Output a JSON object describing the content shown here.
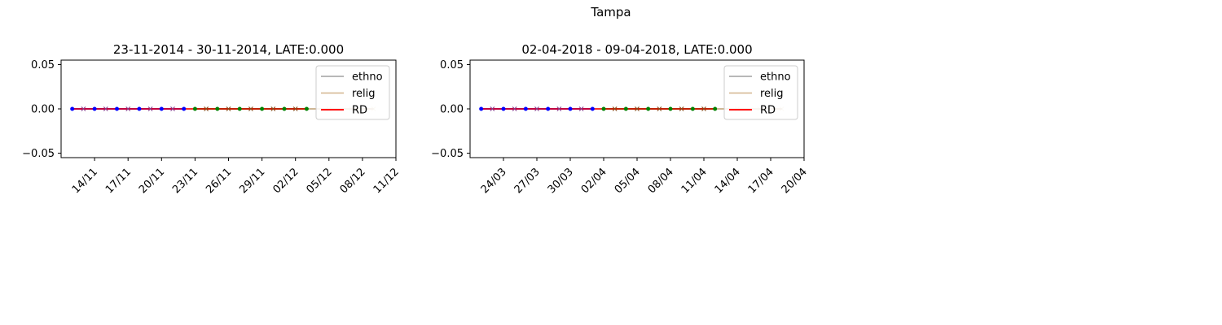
{
  "figure": {
    "title": "Tampa"
  },
  "chart_data": [
    {
      "type": "line",
      "title": "23-11-2014 - 30-11-2014, LATE:0.000",
      "xlabel": "",
      "ylabel": "",
      "x_ticks": [
        "14/11",
        "17/11",
        "20/11",
        "23/11",
        "26/11",
        "29/11",
        "02/12",
        "05/12",
        "08/12",
        "11/12"
      ],
      "x_range": [
        "2014-11-11",
        "2014-12-11"
      ],
      "y_ticks": [
        "0.05",
        "0.00",
        "−0.05"
      ],
      "ylim": [
        -0.055,
        0.055
      ],
      "grid": false,
      "legend": {
        "position": "top-right",
        "entries": [
          "ethno",
          "relig",
          "RD"
        ]
      },
      "colors": {
        "ethno": "#a0a0a0",
        "relig": "#d2b48c",
        "RD": "#ff0000",
        "before": "#0000ff",
        "after": "#008000",
        "faded": "#ead9c3"
      },
      "series": [
        {
          "name": "ethno",
          "x": [
            "2014-11-12",
            "2014-12-09"
          ],
          "y": [
            0,
            0
          ]
        },
        {
          "name": "relig",
          "x": [
            "2014-11-12",
            "2014-12-09"
          ],
          "y": [
            0,
            0
          ]
        },
        {
          "name": "RD",
          "x": [
            "2014-11-12",
            "2014-12-03"
          ],
          "y": [
            0,
            0
          ]
        },
        {
          "x": [
            "2014-11-12",
            "2014-11-14",
            "2014-11-16",
            "2014-11-18",
            "2014-11-20",
            "2014-11-22"
          ],
          "y": [
            0,
            0,
            0,
            0,
            0,
            0
          ]
        },
        {
          "x": [
            "2014-11-23",
            "2014-11-25",
            "2014-11-27",
            "2014-11-29",
            "2014-12-01",
            "2014-12-03"
          ],
          "y": [
            0,
            0,
            0,
            0,
            0,
            0
          ]
        }
      ]
    },
    {
      "type": "line",
      "title": "02-04-2018 - 09-04-2018, LATE:0.000",
      "xlabel": "",
      "ylabel": "",
      "x_ticks": [
        "24/03",
        "27/03",
        "30/03",
        "02/04",
        "05/04",
        "08/04",
        "11/04",
        "14/04",
        "17/04",
        "20/04"
      ],
      "x_range": [
        "2018-03-21",
        "2018-04-20"
      ],
      "y_ticks": [
        "0.05",
        "0.00",
        "−0.05"
      ],
      "ylim": [
        -0.055,
        0.055
      ],
      "grid": false,
      "legend": {
        "position": "top-right",
        "entries": [
          "ethno",
          "relig",
          "RD"
        ]
      },
      "colors": {
        "ethno": "#a0a0a0",
        "relig": "#d2b48c",
        "RD": "#ff0000",
        "before": "#0000ff",
        "after": "#008000",
        "faded": "#ead9c3"
      },
      "series": [
        {
          "name": "ethno",
          "x": [
            "2018-03-22",
            "2018-04-18"
          ],
          "y": [
            0,
            0
          ]
        },
        {
          "name": "relig",
          "x": [
            "2018-03-22",
            "2018-04-18"
          ],
          "y": [
            0,
            0
          ]
        },
        {
          "name": "RD",
          "x": [
            "2018-03-22",
            "2018-04-12"
          ],
          "y": [
            0,
            0
          ]
        },
        {
          "x": [
            "2018-03-22",
            "2018-03-24",
            "2018-03-26",
            "2018-03-28",
            "2018-03-30",
            "2018-04-01"
          ],
          "y": [
            0,
            0,
            0,
            0,
            0,
            0
          ]
        },
        {
          "x": [
            "2018-04-02",
            "2018-04-04",
            "2018-04-06",
            "2018-04-08",
            "2018-04-10",
            "2018-04-12"
          ],
          "y": [
            0,
            0,
            0,
            0,
            0,
            0
          ]
        }
      ]
    }
  ]
}
